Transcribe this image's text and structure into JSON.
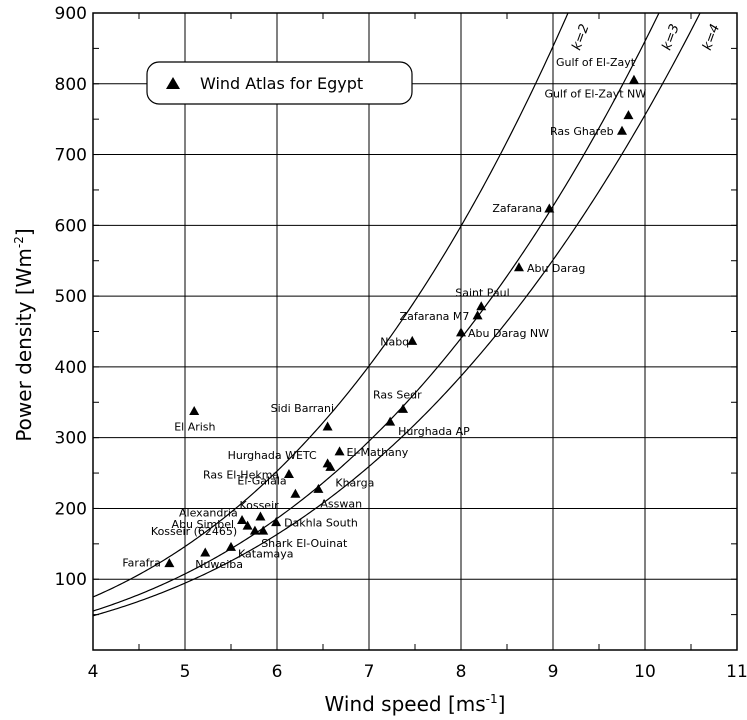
{
  "chart_data": {
    "type": "scatter",
    "xlabel": "Wind speed [ms",
    "xlabel_unit_exp": "-1",
    "xlabel_tail": "]",
    "ylabel": "Power density [Wm",
    "ylabel_unit_exp": "-2",
    "ylabel_tail": "]",
    "xlim": [
      4,
      11
    ],
    "ylim": [
      0,
      900
    ],
    "xticks": [
      4,
      5,
      6,
      7,
      8,
      9,
      10,
      11
    ],
    "yticks": [
      100,
      200,
      300,
      400,
      500,
      600,
      700,
      800,
      900
    ],
    "grid": true,
    "legend": {
      "label": "Wind Atlas for Egypt",
      "position": "top-left"
    },
    "curves": [
      {
        "label": "k=2",
        "k": 2
      },
      {
        "label": "k=3",
        "k": 3
      },
      {
        "label": "k=4",
        "k": 4
      }
    ],
    "points": [
      {
        "label": "Gulf of El-Zayt",
        "x": 9.88,
        "y": 805
      },
      {
        "label": "Gulf of El-Zayt NW",
        "x": 9.82,
        "y": 755
      },
      {
        "label": "Ras Ghareb",
        "x": 9.75,
        "y": 733
      },
      {
        "label": "Zafarana",
        "x": 8.96,
        "y": 623
      },
      {
        "label": "Abu Darag",
        "x": 8.63,
        "y": 540
      },
      {
        "label": "Saint Paul",
        "x": 8.22,
        "y": 485
      },
      {
        "label": "Zafarana M7",
        "x": 8.18,
        "y": 472
      },
      {
        "label": "Abu Darag NW",
        "x": 8.0,
        "y": 448
      },
      {
        "label": "Nabq",
        "x": 7.47,
        "y": 436
      },
      {
        "label": "Ras Sedr",
        "x": 7.37,
        "y": 340
      },
      {
        "label": "Hurghada AP",
        "x": 7.23,
        "y": 322
      },
      {
        "label": "El Arish",
        "x": 5.1,
        "y": 337
      },
      {
        "label": "Sidi Barrani",
        "x": 6.55,
        "y": 315
      },
      {
        "label": "El-Mathany",
        "x": 6.68,
        "y": 280
      },
      {
        "label": "Hurghada WETC",
        "x": 6.55,
        "y": 263
      },
      {
        "label": "Kharga",
        "x": 6.58,
        "y": 258
      },
      {
        "label": "Ras El-Hekma",
        "x": 6.13,
        "y": 248
      },
      {
        "label": "Asswan",
        "x": 6.45,
        "y": 227
      },
      {
        "label": "El-Galala",
        "x": 6.2,
        "y": 220
      },
      {
        "label": "Kosseir",
        "x": 5.82,
        "y": 188
      },
      {
        "label": "Alexandria",
        "x": 5.62,
        "y": 183
      },
      {
        "label": "Abu Simbel",
        "x": 5.68,
        "y": 175
      },
      {
        "label": "Dakhla South",
        "x": 5.99,
        "y": 180
      },
      {
        "label": "Kosseir (62465)",
        "x": 5.76,
        "y": 168
      },
      {
        "label": "Shark El-Ouinat",
        "x": 5.85,
        "y": 168
      },
      {
        "label": "Katamaya",
        "x": 5.5,
        "y": 145
      },
      {
        "label": "Nuweiba",
        "x": 5.22,
        "y": 137
      },
      {
        "label": "Farafra",
        "x": 4.83,
        "y": 122
      }
    ]
  }
}
